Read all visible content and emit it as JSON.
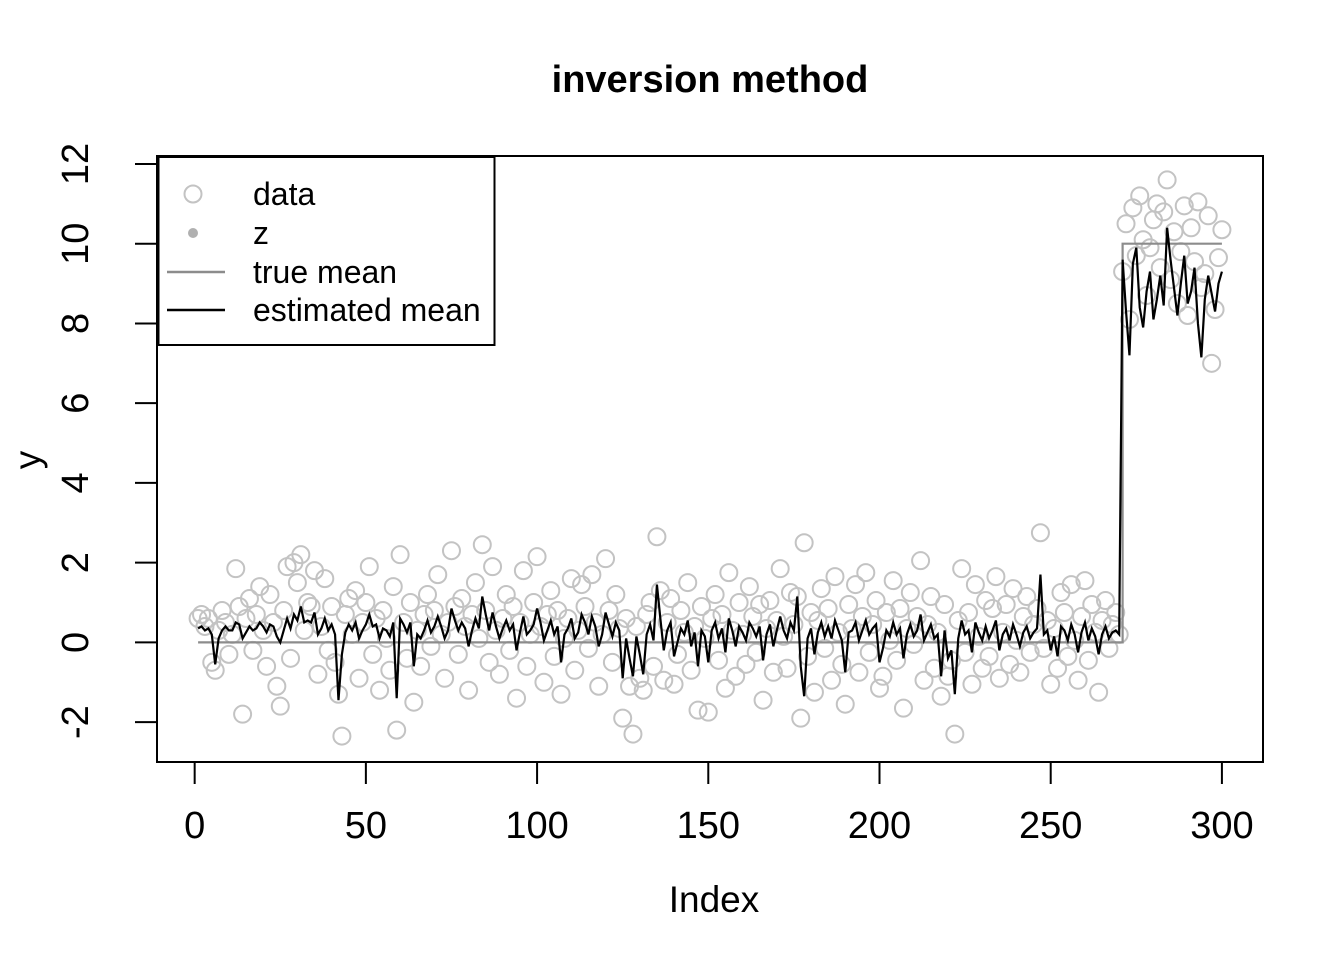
{
  "chart_data": {
    "type": "scatter",
    "title": "inversion method",
    "xlabel": "Index",
    "ylabel": "y",
    "xlim": [
      -11,
      312
    ],
    "ylim": [
      -3,
      12.2
    ],
    "x_ticks": [
      0,
      50,
      100,
      150,
      200,
      250,
      300
    ],
    "y_ticks": [
      -2,
      0,
      2,
      4,
      6,
      8,
      10,
      12
    ],
    "grid": false,
    "colors": {
      "data_points": "#c3c3c3",
      "z_dot": "#b0b0b0",
      "true_mean": "#8c8c8c",
      "estimated_mean": "#000000",
      "axis": "#000000"
    },
    "legend": {
      "position": "top-left",
      "entries": [
        {
          "label": "data",
          "symbol": "open-circle",
          "color": "#c3c3c3"
        },
        {
          "label": "z",
          "symbol": "filled-dot",
          "color": "#b0b0b0"
        },
        {
          "label": "true mean",
          "symbol": "line",
          "color": "#8c8c8c"
        },
        {
          "label": "estimated mean",
          "symbol": "line",
          "color": "#000000"
        }
      ]
    },
    "series": [
      {
        "name": "data",
        "type": "scatter",
        "marker": "open-circle",
        "color": "#c3c3c3",
        "x_start": 1,
        "y": [
          0.6,
          0.7,
          0.4,
          0.6,
          -0.5,
          -0.7,
          0.3,
          0.8,
          0.5,
          -0.3,
          0.2,
          1.85,
          0.9,
          -1.8,
          0.6,
          1.1,
          -0.2,
          0.7,
          1.4,
          0.3,
          -0.6,
          1.2,
          0.5,
          -1.1,
          -1.6,
          0.8,
          1.9,
          -0.4,
          2.0,
          1.5,
          2.2,
          0.3,
          1.0,
          0.9,
          1.8,
          -0.8,
          0.4,
          1.6,
          -0.2,
          0.9,
          -0.5,
          -1.3,
          -2.35,
          0.7,
          1.1,
          0.2,
          1.3,
          -0.9,
          0.5,
          1.0,
          1.9,
          -0.3,
          0.6,
          -1.2,
          0.8,
          0.1,
          -0.7,
          1.4,
          -2.2,
          2.2,
          0.5,
          -0.4,
          1.0,
          -1.5,
          0.3,
          -0.6,
          0.7,
          1.2,
          -0.1,
          0.8,
          1.7,
          0.2,
          -0.9,
          0.5,
          2.3,
          0.9,
          -0.3,
          1.1,
          0.4,
          -1.2,
          0.7,
          1.5,
          0.1,
          2.45,
          0.8,
          -0.5,
          1.9,
          0.3,
          -0.8,
          0.6,
          1.2,
          -0.2,
          0.9,
          -1.4,
          0.5,
          1.8,
          -0.6,
          0.2,
          1.0,
          2.15,
          0.4,
          -1.0,
          0.7,
          1.3,
          -0.35,
          0.8,
          -1.3,
          0.1,
          0.6,
          1.6,
          -0.7,
          0.3,
          1.45,
          0.9,
          -0.15,
          1.7,
          0.5,
          -1.1,
          0.2,
          2.1,
          0.8,
          -0.5,
          1.2,
          0.35,
          -1.9,
          0.6,
          -1.1,
          -2.3,
          0.4,
          -0.9,
          -1.2,
          0.7,
          1.0,
          -0.6,
          2.65,
          1.3,
          -0.95,
          0.5,
          1.1,
          -1.05,
          -0.3,
          0.8,
          0.25,
          1.5,
          -0.7,
          0.4,
          -1.7,
          0.9,
          0.1,
          -1.75,
          0.6,
          1.2,
          -0.45,
          0.7,
          -1.15,
          1.75,
          0.3,
          -0.85,
          1.0,
          0.2,
          -0.55,
          1.4,
          0.65,
          -0.25,
          0.95,
          -1.45,
          0.35,
          1.05,
          -0.75,
          0.55,
          1.85,
          0.15,
          -0.65,
          1.25,
          0.45,
          1.15,
          -1.9,
          2.5,
          -0.35,
          0.75,
          -1.25,
          0.55,
          1.35,
          -0.15,
          0.85,
          -0.95,
          1.65,
          0.25,
          -0.55,
          -1.55,
          0.95,
          0.35,
          1.45,
          -0.75,
          0.65,
          1.75,
          -0.25,
          0.45,
          1.05,
          -1.15,
          -0.85,
          0.75,
          0.05,
          1.55,
          -0.45,
          0.85,
          -1.65,
          0.35,
          1.25,
          -0.05,
          0.65,
          2.05,
          -0.95,
          0.45,
          1.15,
          -0.65,
          0.25,
          -1.35,
          0.95,
          -0.85,
          -0.45,
          -2.3,
          0.55,
          1.85,
          -0.25,
          0.75,
          -1.05,
          1.45,
          0.15,
          -0.65,
          1.05,
          -0.35,
          0.85,
          1.65,
          -0.9,
          0.25,
          0.95,
          -0.55,
          1.35,
          0.05,
          -0.75,
          0.65,
          1.15,
          -0.25,
          0.45,
          0.85,
          2.75,
          -0.15,
          0.55,
          -1.05,
          0.35,
          -0.65,
          1.25,
          0.75,
          -0.35,
          1.45,
          0.05,
          -0.95,
          0.65,
          1.55,
          -0.45,
          0.95,
          0.25,
          -1.25,
          0.55,
          1.05,
          -0.15,
          0.45,
          0.75,
          0.2,
          9.3,
          10.5,
          8.1,
          10.9,
          9.7,
          11.2,
          10.1,
          8.7,
          9.9,
          10.6,
          11.0,
          9.4,
          10.8,
          11.6,
          9.1,
          10.3,
          8.5,
          9.8,
          10.95,
          8.2,
          10.4,
          9.55,
          11.05,
          8.9,
          9.25,
          10.7,
          7.0,
          8.35,
          9.65,
          10.35
        ]
      },
      {
        "name": "true mean",
        "type": "step-line",
        "color": "#8c8c8c",
        "x": [
          1,
          271,
          271,
          300
        ],
        "y": [
          0,
          0,
          10,
          10
        ]
      },
      {
        "name": "estimated mean",
        "type": "line",
        "color": "#000000",
        "x_start": 1,
        "y": [
          0.35,
          0.4,
          0.3,
          0.35,
          0.2,
          -0.55,
          0.1,
          0.3,
          0.4,
          0.3,
          0.3,
          0.5,
          0.45,
          0.1,
          0.25,
          0.4,
          0.3,
          0.35,
          0.5,
          0.4,
          0.25,
          0.45,
          0.4,
          0.15,
          0.0,
          0.3,
          0.6,
          0.35,
          0.7,
          0.55,
          0.9,
          0.5,
          0.55,
          0.5,
          0.75,
          0.2,
          0.35,
          0.6,
          0.3,
          0.45,
          0.2,
          -1.45,
          -0.3,
          0.25,
          0.45,
          0.3,
          0.5,
          0.1,
          0.3,
          0.45,
          0.7,
          0.4,
          0.45,
          0.1,
          0.35,
          0.3,
          0.15,
          0.5,
          -1.4,
          0.6,
          0.45,
          0.25,
          0.5,
          -0.6,
          0.2,
          0.1,
          0.3,
          0.55,
          0.25,
          0.4,
          0.65,
          0.4,
          0.1,
          0.3,
          0.85,
          0.55,
          0.3,
          0.5,
          0.35,
          -0.1,
          0.3,
          0.6,
          0.35,
          1.15,
          0.7,
          0.3,
          0.75,
          0.4,
          0.1,
          0.35,
          0.55,
          0.3,
          0.45,
          -0.2,
          0.25,
          0.65,
          0.2,
          0.3,
          0.45,
          0.85,
          0.5,
          0.05,
          0.3,
          0.55,
          0.2,
          0.4,
          -0.5,
          0.2,
          0.35,
          0.6,
          0.1,
          0.25,
          0.7,
          0.5,
          0.2,
          0.65,
          0.4,
          -0.1,
          0.2,
          0.75,
          0.45,
          0.15,
          0.5,
          0.3,
          -0.9,
          0.1,
          -0.4,
          -0.85,
          0.15,
          -0.3,
          -0.8,
          0.2,
          0.45,
          0.05,
          1.45,
          0.6,
          -0.2,
          0.3,
          0.5,
          -0.35,
          0.0,
          0.35,
          0.2,
          0.55,
          -0.1,
          0.25,
          -0.6,
          0.3,
          0.15,
          -0.5,
          0.3,
          0.5,
          0.1,
          0.35,
          -0.25,
          0.6,
          0.3,
          -0.1,
          0.4,
          0.25,
          0.05,
          0.5,
          0.35,
          0.15,
          0.4,
          -0.45,
          0.2,
          0.45,
          -0.1,
          0.3,
          0.65,
          0.3,
          0.1,
          0.5,
          0.3,
          1.15,
          -0.6,
          -1.35,
          0.1,
          0.35,
          -0.3,
          0.25,
          0.5,
          0.15,
          0.4,
          0.1,
          0.55,
          0.3,
          0.05,
          -0.75,
          0.25,
          0.3,
          0.5,
          0.05,
          0.3,
          0.55,
          0.2,
          0.35,
          0.45,
          -0.5,
          -0.15,
          0.3,
          0.15,
          0.5,
          0.2,
          0.35,
          -0.4,
          0.2,
          0.45,
          0.15,
          0.3,
          0.7,
          0.05,
          0.25,
          0.45,
          0.1,
          0.2,
          -0.85,
          0.3,
          -0.4,
          -0.2,
          -1.3,
          0.1,
          0.55,
          0.2,
          0.3,
          -0.25,
          0.5,
          0.25,
          0.05,
          0.4,
          0.1,
          0.3,
          0.55,
          -0.2,
          0.2,
          0.35,
          0.05,
          0.45,
          0.2,
          -0.1,
          0.25,
          0.4,
          0.1,
          0.25,
          0.35,
          1.7,
          0.2,
          0.3,
          -0.2,
          0.15,
          -0.35,
          0.4,
          0.3,
          0.05,
          0.45,
          0.2,
          -0.25,
          0.25,
          0.5,
          0.05,
          0.35,
          0.15,
          -0.3,
          0.2,
          0.4,
          0.1,
          0.25,
          0.3,
          0.2,
          9.6,
          8.3,
          7.2,
          9.5,
          9.9,
          8.4,
          7.9,
          8.8,
          9.3,
          8.1,
          8.6,
          9.2,
          8.45,
          10.4,
          9.6,
          8.9,
          8.2,
          9.0,
          9.7,
          8.5,
          8.8,
          9.4,
          8.0,
          7.15,
          8.6,
          9.2,
          8.75,
          8.3,
          9.0,
          9.3
        ]
      }
    ]
  }
}
